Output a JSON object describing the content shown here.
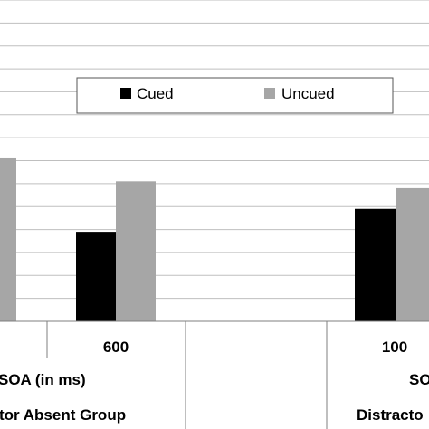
{
  "chart_data": {
    "type": "bar",
    "title": "",
    "ylim": [
      0,
      14
    ],
    "grid": true,
    "legend_position": "top-center",
    "series": [
      {
        "name": "Cued",
        "color": "#000000"
      },
      {
        "name": "Uncued",
        "color": "#a6a6a6"
      }
    ],
    "bar_values": [
      {
        "series": "Uncued",
        "value": 7.1
      },
      {
        "series": "Cued",
        "value": 3.9
      },
      {
        "series": "Uncued",
        "value": 6.1
      },
      {
        "series": "Cued",
        "value": 4.9
      },
      {
        "series": "Uncued",
        "value": 5.8
      }
    ],
    "tick_labels": [
      "600",
      "100"
    ],
    "axis_labels": [
      "SOA (in ms)",
      "SO"
    ],
    "group_labels": [
      "tor Absent Group",
      "Distracto"
    ]
  }
}
